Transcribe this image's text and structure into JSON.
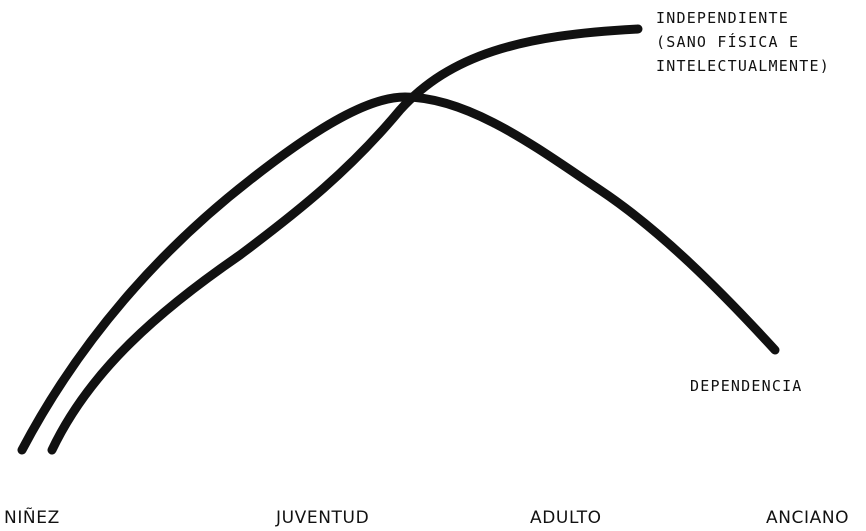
{
  "curves": {
    "independence_label_lines": [
      "INDEPENDIENTE",
      "(SANO FÍSICA E",
      "INTELECTUALMENTE)"
    ],
    "dependence_label": "DEPENDENCIA"
  },
  "stages": [
    "NIÑEZ",
    "JUVENTUD",
    "ADULTO",
    "ANCIANO"
  ],
  "colors": {
    "ink": "#111111",
    "background": "#ffffff"
  }
}
